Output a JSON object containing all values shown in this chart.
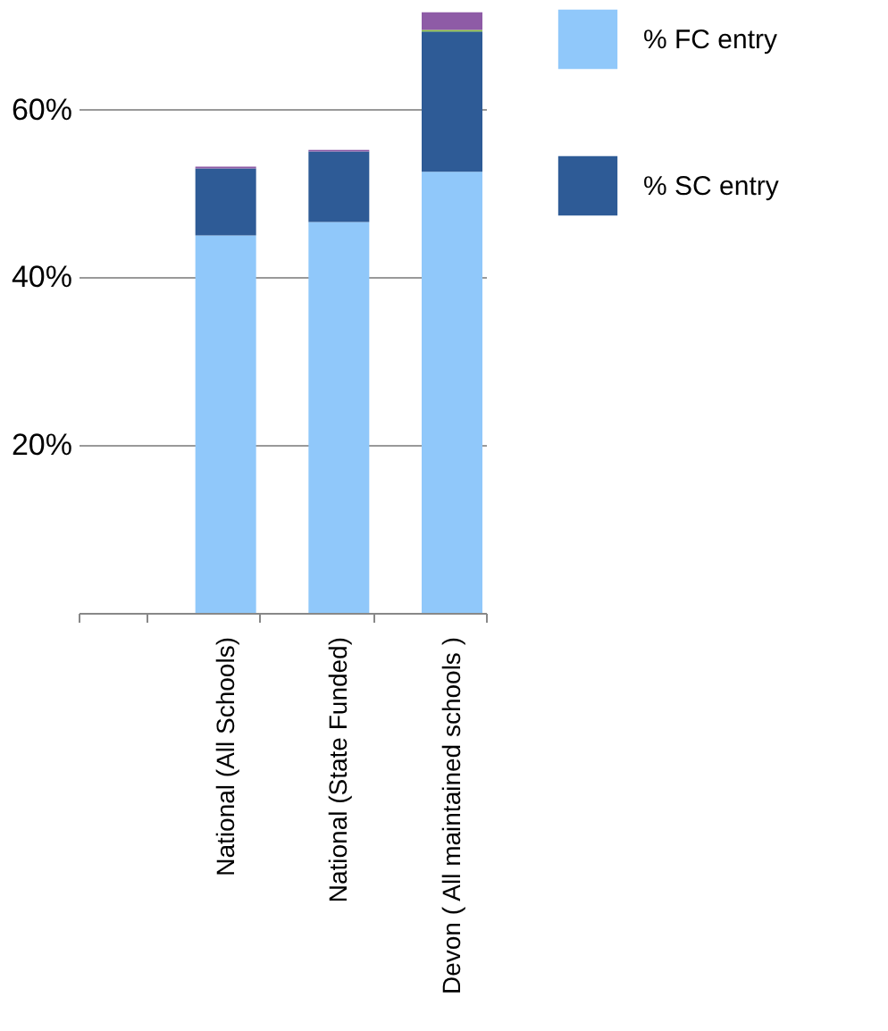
{
  "chart_data": {
    "type": "bar",
    "stacked": true,
    "categories": [
      null,
      "National (All Schools)",
      "National (State Funded)",
      "Devon ( All maintained schools )"
    ],
    "series": [
      {
        "name": "% FC entry",
        "color": "#90c8fa",
        "values": [
          null,
          45,
          46.6,
          52.6
        ]
      },
      {
        "name": "% SC entry",
        "color": "#2e5b96",
        "values": [
          null,
          8,
          8.4,
          16.7
        ]
      },
      {
        "color": "#8cc63f",
        "values": [
          null,
          0,
          0,
          0.2
        ]
      },
      {
        "color": "#8e5ba6",
        "values": [
          null,
          0.2,
          0.2,
          2.1
        ]
      }
    ],
    "ylim": [
      0,
      72
    ],
    "yticks": [
      {
        "value": 0,
        "label": null
      },
      {
        "value": 20,
        "label": "20%"
      },
      {
        "value": 40,
        "label": "40%"
      },
      {
        "value": 60,
        "label": "60%"
      }
    ],
    "grid": "y",
    "legend": "right"
  }
}
